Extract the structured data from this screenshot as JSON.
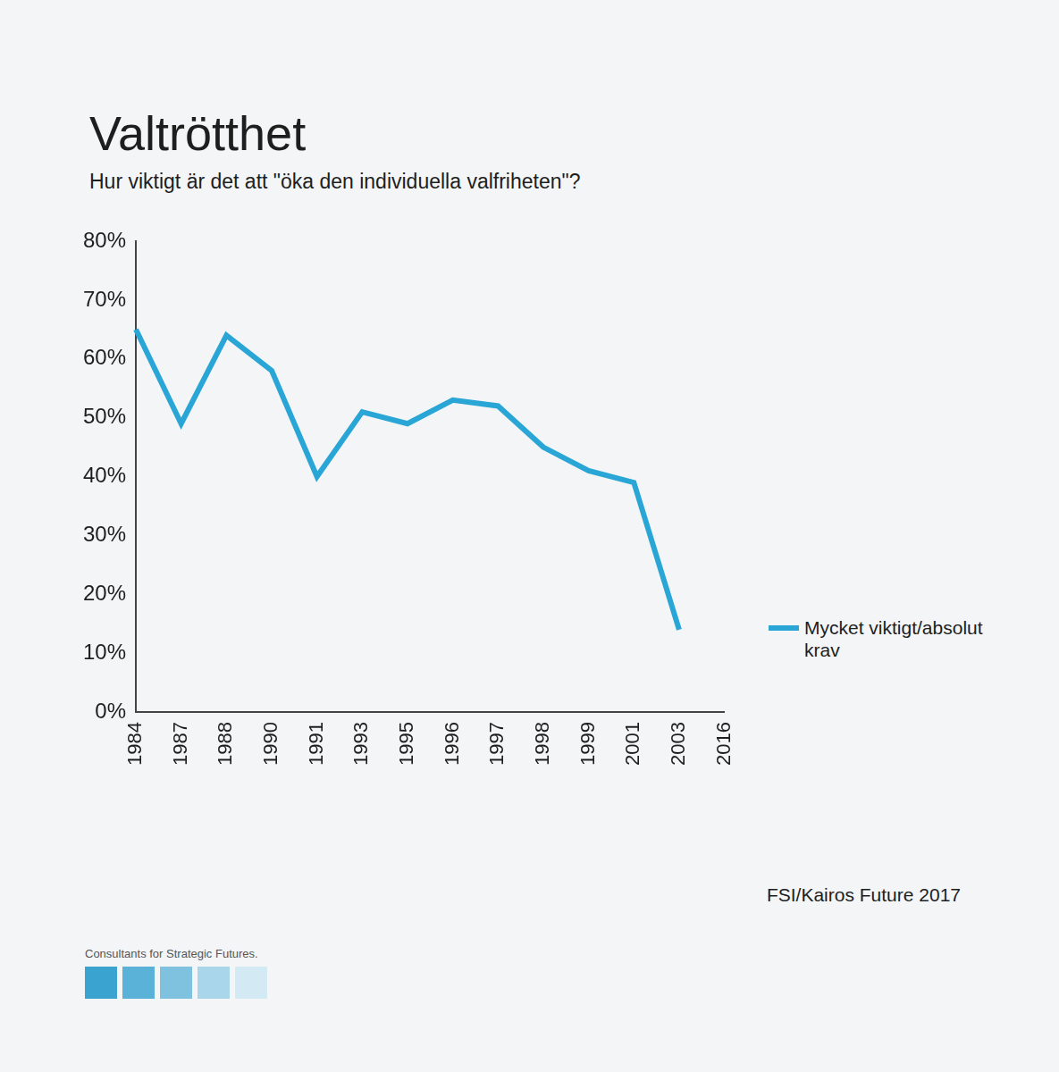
{
  "chart_data": {
    "type": "line",
    "title": "Valtrötthet",
    "subtitle": "Hur viktigt är det att \"öka den individuella valfriheten\"?",
    "categories": [
      "1984",
      "1987",
      "1988",
      "1990",
      "1991",
      "1993",
      "1995",
      "1996",
      "1997",
      "1998",
      "1999",
      "2001",
      "2003",
      "2016"
    ],
    "series": [
      {
        "name": "Mycket viktigt/absolut krav",
        "color": "#2aa6d6",
        "values": [
          65,
          49,
          64,
          58,
          40,
          51,
          49,
          53,
          52,
          45,
          41,
          39,
          14,
          null
        ]
      }
    ],
    "ylim": [
      0,
      80
    ],
    "yticks": [
      {
        "value": 0,
        "label": "0%"
      },
      {
        "value": 10,
        "label": "10%"
      },
      {
        "value": 20,
        "label": "20%"
      },
      {
        "value": 30,
        "label": "30%"
      },
      {
        "value": 40,
        "label": "40%"
      },
      {
        "value": 50,
        "label": "50%"
      },
      {
        "value": 60,
        "label": "60%"
      },
      {
        "value": 70,
        "label": "70%"
      },
      {
        "value": 80,
        "label": "80%"
      }
    ],
    "grid": false,
    "legend": "right",
    "source": "FSI/Kairos Future 2017",
    "footer": "Consultants for Strategic Futures."
  }
}
